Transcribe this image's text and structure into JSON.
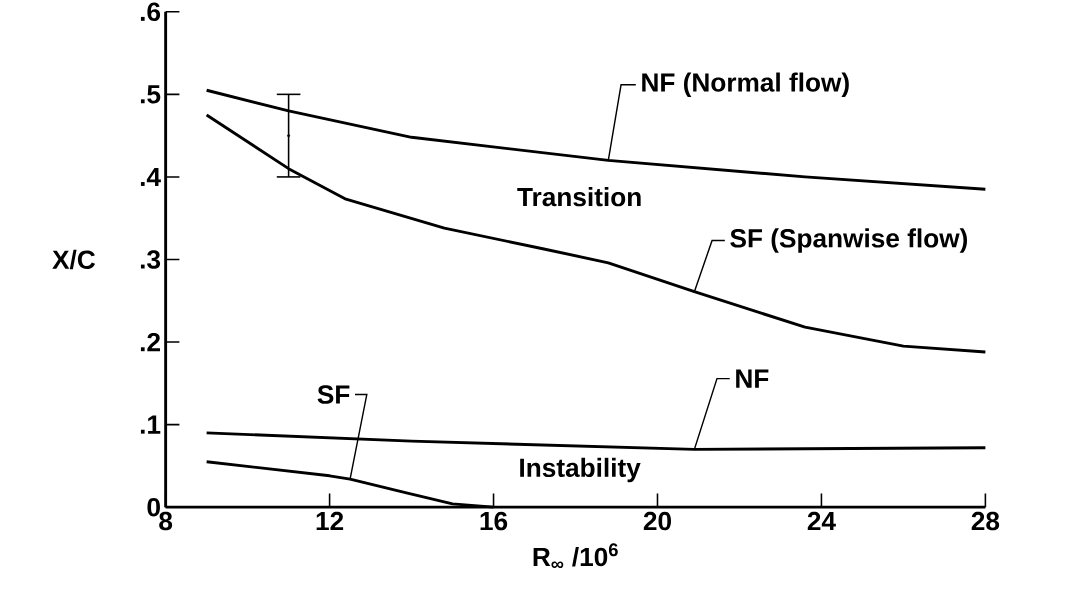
{
  "chart_data": {
    "type": "line",
    "xlabel": "R$_{∞}$ /10$^{6}$",
    "ylabel": "X/C",
    "xlim": [
      8,
      28
    ],
    "xticks": [
      8,
      12,
      16,
      20,
      24,
      28
    ],
    "ylim": [
      0,
      0.6
    ],
    "yticks": [
      0,
      {
        "value": 0.1,
        "label": ".1"
      },
      {
        "value": 0.2,
        "label": ".2"
      },
      {
        "value": 0.3,
        "label": ".3"
      },
      {
        "value": 0.4,
        "label": ".4"
      },
      {
        "value": 0.5,
        "label": ".5"
      },
      {
        "value": 0.6,
        "label": ".6"
      }
    ],
    "series": [
      {
        "name": "NF (Normal flow)",
        "color": "#000000",
        "x": [
          9,
          11,
          14,
          18.8,
          23.6,
          28
        ],
        "values": [
          0.505,
          0.48,
          0.448,
          0.42,
          0.4,
          0.385
        ]
      },
      {
        "name": "SF (Spanwise flow)",
        "color": "#000000",
        "x": [
          9,
          11,
          12.4,
          14.8,
          17.2,
          18.8,
          20.9,
          23.6,
          26,
          28
        ],
        "values": [
          0.475,
          0.41,
          0.373,
          0.338,
          0.313,
          0.296,
          0.261,
          0.218,
          0.195,
          0.188
        ]
      },
      {
        "name": "NF",
        "color": "#000000",
        "x": [
          9,
          14,
          20.9,
          28
        ],
        "values": [
          0.09,
          0.08,
          0.07,
          0.072
        ]
      },
      {
        "name": "SF",
        "color": "#000000",
        "x": [
          9,
          12,
          12.5,
          13.9,
          15,
          16
        ],
        "values": [
          0.055,
          0.038,
          0.034,
          0.017,
          0.004,
          0
        ]
      },
      {
        "type": "scatter",
        "color": "#000000",
        "x": [
          11
        ],
        "values": [
          0.45
        ],
        "errors": [
          [
            0.4,
            0.5
          ]
        ]
      }
    ],
    "annotations": [
      "Transition",
      "Instability"
    ],
    "legend": false
  }
}
